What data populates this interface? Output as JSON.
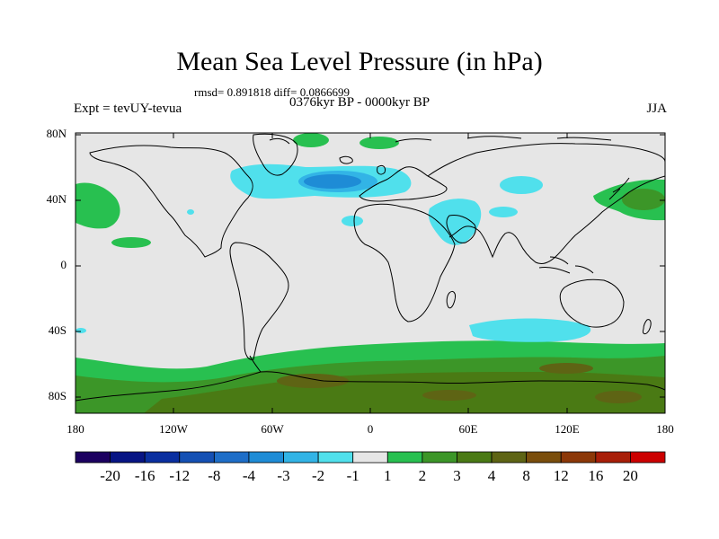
{
  "title": "Mean Sea Level Pressure (in hPa)",
  "stats": "rmsd= 0.891818  diff= 0.0866699",
  "period": "0376kyr BP - 0000kyr BP",
  "experiment": "Expt = tevUY-tevua",
  "season": "JJA",
  "colors": {
    "background_zero": "#e6e6e6",
    "coast": "#000000"
  },
  "axes": {
    "lon_labels": [
      "180",
      "120W",
      "60W",
      "0",
      "60E",
      "120E",
      "180"
    ],
    "lat_labels": [
      "80N",
      "40N",
      "0",
      "40S",
      "80S"
    ]
  },
  "colorbar": {
    "colors": [
      "#1c0060",
      "#071484",
      "#0a2fa0",
      "#1450b4",
      "#1e6ec8",
      "#1e8cd6",
      "#32b4e6",
      "#50e0ec",
      "#e6e6e6",
      "#28c050",
      "#3c9628",
      "#4a7a14",
      "#5e6414",
      "#7a4e0c",
      "#8c3808",
      "#a81e08",
      "#cc0000"
    ],
    "labels": [
      "-20",
      "-16",
      "-12",
      "-8",
      "-4",
      "-3",
      "-2",
      "-1",
      "1",
      "2",
      "3",
      "4",
      "8",
      "12",
      "16",
      "20"
    ]
  }
}
